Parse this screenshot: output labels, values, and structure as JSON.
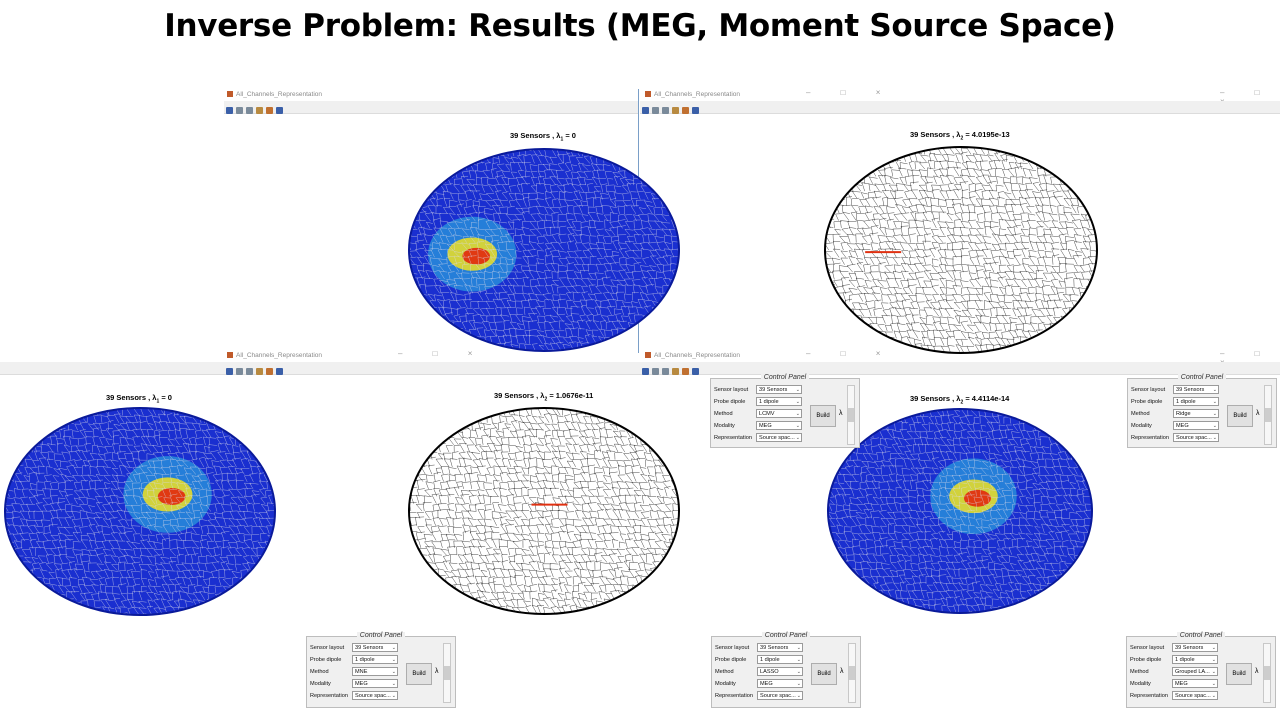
{
  "slide": {
    "title": "Inverse Problem: Results (MEG, Moment Source Space)"
  },
  "windows": [
    {
      "title": "All_Channels_Representation",
      "plot_title": "39 Sensors , λ",
      "lambda_sub": "1",
      "lambda_val": " = 0"
    },
    {
      "title": "All_Channels_Representation",
      "plot_title": "39 Sensors , λ",
      "lambda_sub": "2",
      "lambda_val": " = 4.0195e-13"
    },
    {
      "title": "All_Channels_Representation",
      "plot_title": "39 Sensors , λ",
      "lambda_sub": "1",
      "lambda_val": " = 0"
    },
    {
      "title": "All_Channels_Representation",
      "plot_title": "39 Sensors , λ",
      "lambda_sub": "2",
      "lambda_val": " = 1.0676e-11"
    },
    {
      "title": "",
      "plot_title": "39 Sensors , λ",
      "lambda_sub": "2",
      "lambda_val": " = 4.4114e-14"
    }
  ],
  "panels": [
    {
      "legend": "Control Panel",
      "sensor_layout": "39 Sensors",
      "probe_dipole": "1 dipole",
      "method": "LCMV",
      "modality": "MEG",
      "representation": "Source spac...",
      "build": "Build",
      "lambda": "λ"
    },
    {
      "legend": "Control Panel",
      "sensor_layout": "39 Sensors",
      "probe_dipole": "1 dipole",
      "method": "Ridge",
      "modality": "MEG",
      "representation": "Source spac...",
      "build": "Build",
      "lambda": "λ"
    },
    {
      "legend": "Control Panel",
      "sensor_layout": "39 Sensors",
      "probe_dipole": "1 dipole",
      "method": "MNE",
      "modality": "MEG",
      "representation": "Source spac...",
      "build": "Build",
      "lambda": "λ"
    },
    {
      "legend": "Control Panel",
      "sensor_layout": "39 Sensors",
      "probe_dipole": "1 dipole",
      "method": "LASSO",
      "modality": "MEG",
      "representation": "Source spac...",
      "build": "Build",
      "lambda": "λ"
    },
    {
      "legend": "Control Panel",
      "sensor_layout": "39 Sensors",
      "probe_dipole": "1 dipole",
      "method": "Grouped LA...",
      "modality": "MEG",
      "representation": "Source spac...",
      "build": "Build",
      "lambda": "λ"
    }
  ],
  "labels": {
    "sensor_layout": "Sensor layout",
    "probe_dipole": "Probe dipole",
    "method": "Method",
    "modality": "Modality",
    "representation": "Representation"
  },
  "window_controls": {
    "text": "–  □  ×"
  },
  "colors": {
    "blue_mesh": "#1a2fd0",
    "black_mesh": "#111111",
    "hot": "#e03010",
    "warm": "#f0e020",
    "cool": "#30c0e0"
  },
  "icons": [
    "save-icon",
    "zoom-in-icon",
    "zoom-out-icon",
    "pan-icon",
    "datatip-icon",
    "rotate-icon"
  ]
}
